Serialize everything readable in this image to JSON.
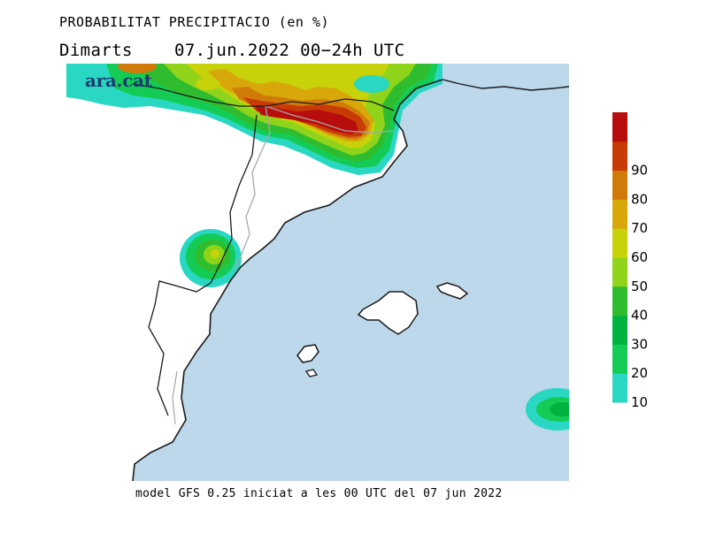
{
  "title": {
    "heading": "PROBABILITAT PRECIPITACIO (en %)",
    "day": "Dimarts",
    "datetime": "07.jun.2022 00−24h UTC"
  },
  "brand": "ara.cat",
  "footer": "model GFS 0.25 iniciat a les 00 UTC del 07 jun 2022",
  "colors": {
    "sea": "#bcd8ea",
    "land": "#ffffff",
    "coast": "#1a1a1a",
    "border": "#a8a8a8"
  },
  "colorbar": {
    "levels": [
      {
        "label": "10",
        "color": "#2ad7c2"
      },
      {
        "label": "20",
        "color": "#14cc55"
      },
      {
        "label": "30",
        "color": "#00b33f"
      },
      {
        "label": "40",
        "color": "#2fbd2f"
      },
      {
        "label": "50",
        "color": "#8fd41a"
      },
      {
        "label": "60",
        "color": "#c8d20a"
      },
      {
        "label": "70",
        "color": "#d8a70a"
      },
      {
        "label": "80",
        "color": "#d07a0a"
      },
      {
        "label": "90",
        "color": "#c83a06"
      },
      {
        "label": "",
        "color": "#b80d0d"
      }
    ]
  }
}
